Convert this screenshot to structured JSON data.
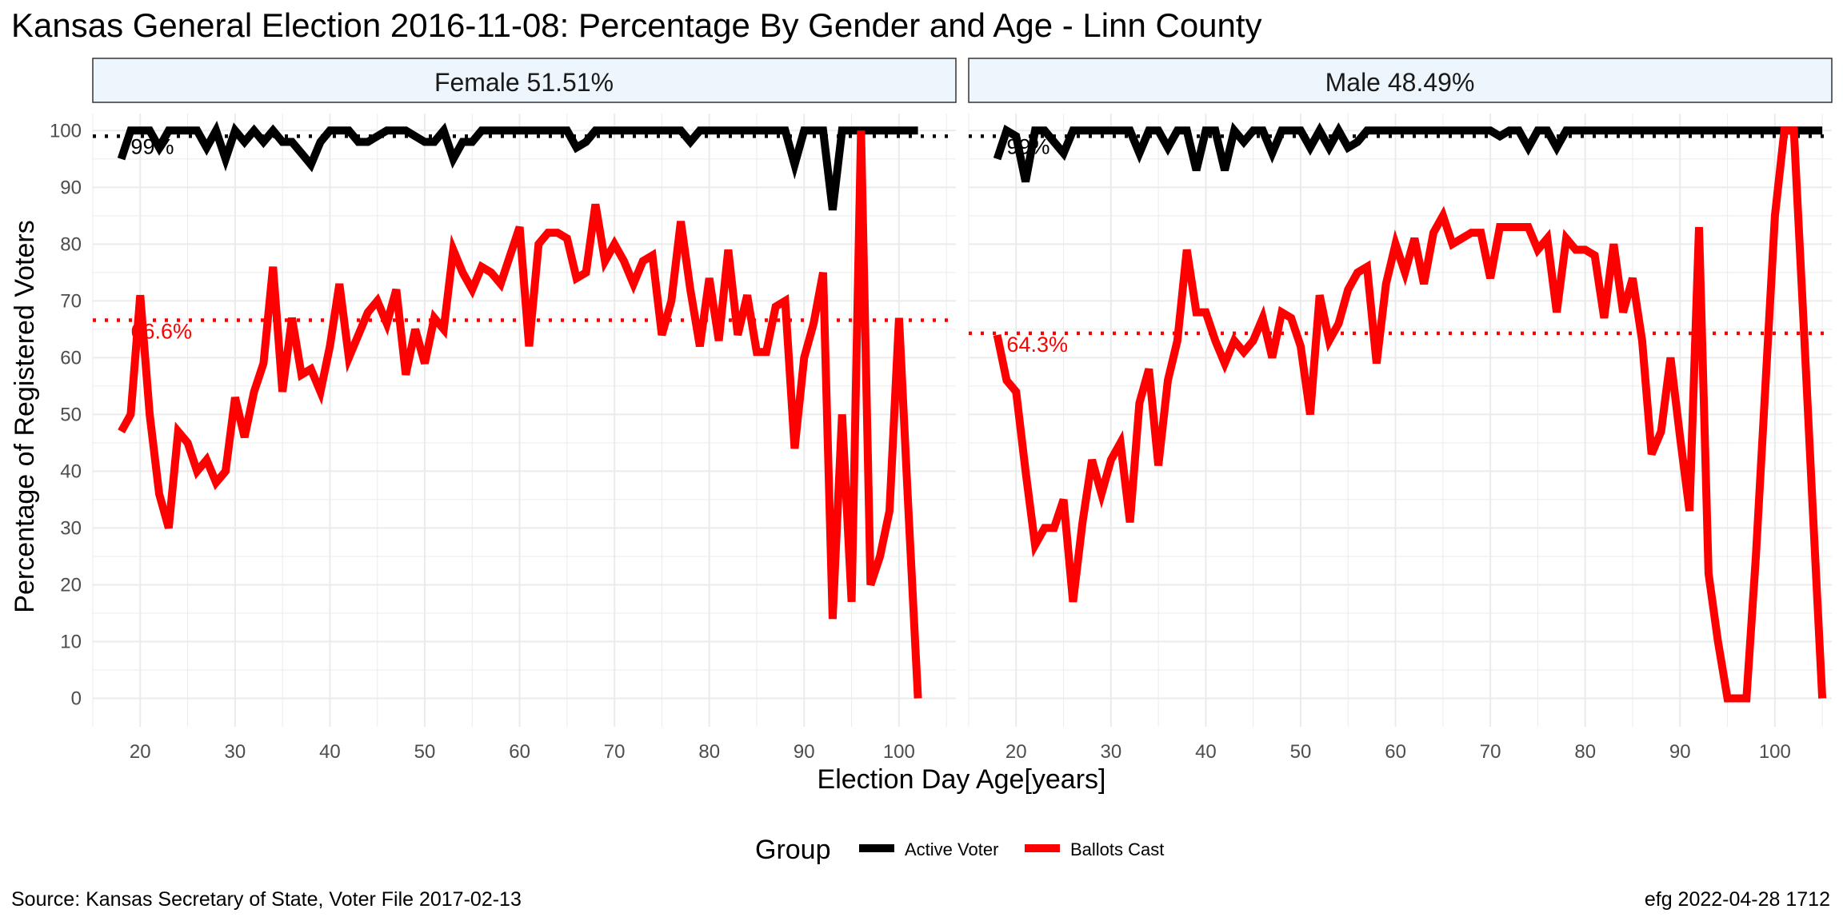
{
  "title": "Kansas General Election 2016-11-08:  Percentage By Gender and Age - Linn County",
  "source": "Source:  Kansas Secretary of State, Voter File  2017-02-13",
  "stamp": "efg 2022-04-28 1712",
  "colors": {
    "active": "#000000",
    "ballots": "#ff0000",
    "strip_fill": "#eef6fd",
    "grid": "#ebebeb"
  },
  "chart_data": {
    "type": "line",
    "xlabel": "Election Day Age[years]",
    "ylabel": "Percentage of Registered Voters",
    "xlim": [
      15,
      106
    ],
    "ylim": [
      -5,
      103
    ],
    "x_ticks": [
      20,
      30,
      40,
      50,
      60,
      70,
      80,
      90,
      100
    ],
    "y_ticks": [
      0,
      10,
      20,
      30,
      40,
      50,
      60,
      70,
      80,
      90,
      100
    ],
    "grid": true,
    "legend": {
      "title": "Group",
      "position": "bottom",
      "entries": [
        "Active Voter",
        "Ballots Cast"
      ]
    },
    "panels": [
      {
        "strip": "Female 51.51%",
        "active_ref": 99,
        "active_ref_label": "99%",
        "ballots_ref": 66.6,
        "ballots_ref_label": "66.6%",
        "series": [
          {
            "name": "Active Voter",
            "x": [
              18,
              19,
              20,
              21,
              22,
              23,
              24,
              25,
              26,
              27,
              28,
              29,
              30,
              31,
              32,
              33,
              34,
              35,
              36,
              37,
              38,
              39,
              40,
              41,
              42,
              43,
              44,
              45,
              46,
              47,
              48,
              49,
              50,
              51,
              52,
              53,
              54,
              55,
              56,
              57,
              58,
              59,
              60,
              61,
              62,
              63,
              64,
              65,
              66,
              67,
              68,
              69,
              70,
              71,
              72,
              73,
              74,
              75,
              76,
              77,
              78,
              79,
              80,
              81,
              82,
              83,
              84,
              85,
              86,
              87,
              88,
              89,
              90,
              91,
              92,
              93,
              94,
              95,
              96,
              97,
              98,
              99,
              100,
              101,
              102
            ],
            "y": [
              95,
              100,
              100,
              100,
              97,
              100,
              100,
              100,
              100,
              97,
              100,
              95,
              100,
              98,
              100,
              98,
              100,
              98,
              98,
              96,
              94,
              98,
              100,
              100,
              100,
              98,
              98,
              99,
              100,
              100,
              100,
              99,
              98,
              98,
              100,
              95,
              98,
              98,
              100,
              100,
              100,
              100,
              100,
              100,
              100,
              100,
              100,
              100,
              97,
              98,
              100,
              100,
              100,
              100,
              100,
              100,
              100,
              100,
              100,
              100,
              98,
              100,
              100,
              100,
              100,
              100,
              100,
              100,
              100,
              100,
              100,
              94,
              100,
              100,
              100,
              86,
              100,
              100,
              100,
              100,
              100,
              100,
              100,
              100,
              100
            ]
          },
          {
            "name": "Ballots Cast",
            "x": [
              18,
              19,
              20,
              21,
              22,
              23,
              24,
              25,
              26,
              27,
              28,
              29,
              30,
              31,
              32,
              33,
              34,
              35,
              36,
              37,
              38,
              39,
              40,
              41,
              42,
              43,
              44,
              45,
              46,
              47,
              48,
              49,
              50,
              51,
              52,
              53,
              54,
              55,
              56,
              57,
              58,
              59,
              60,
              61,
              62,
              63,
              64,
              65,
              66,
              67,
              68,
              69,
              70,
              71,
              72,
              73,
              74,
              75,
              76,
              77,
              78,
              79,
              80,
              81,
              82,
              83,
              84,
              85,
              86,
              87,
              88,
              89,
              90,
              91,
              92,
              93,
              94,
              95,
              96,
              97,
              98,
              99,
              100,
              101,
              102
            ],
            "y": [
              47,
              50,
              71,
              50,
              36,
              30,
              47,
              45,
              40,
              42,
              38,
              40,
              53,
              46,
              54,
              59,
              76,
              54,
              67,
              57,
              58,
              54,
              62,
              73,
              60,
              64,
              68,
              70,
              66,
              72,
              57,
              65,
              59,
              67,
              65,
              79,
              75,
              72,
              76,
              75,
              73,
              78,
              83,
              62,
              80,
              82,
              82,
              81,
              74,
              75,
              87,
              77,
              80,
              77,
              73,
              77,
              78,
              64,
              70,
              84,
              72,
              62,
              74,
              63,
              79,
              64,
              71,
              61,
              61,
              69,
              70,
              44,
              60,
              66,
              75,
              14,
              50,
              17,
              100,
              20,
              25,
              33,
              67,
              33,
              0
            ]
          }
        ]
      },
      {
        "strip": "Male 48.49%",
        "active_ref": 99,
        "active_ref_label": "99%",
        "ballots_ref": 64.3,
        "ballots_ref_label": "64.3%",
        "series": [
          {
            "name": "Active Voter",
            "x": [
              18,
              19,
              20,
              21,
              22,
              23,
              24,
              25,
              26,
              27,
              28,
              29,
              30,
              31,
              32,
              33,
              34,
              35,
              36,
              37,
              38,
              39,
              40,
              41,
              42,
              43,
              44,
              45,
              46,
              47,
              48,
              49,
              50,
              51,
              52,
              53,
              54,
              55,
              56,
              57,
              58,
              59,
              60,
              61,
              62,
              63,
              64,
              65,
              66,
              67,
              68,
              69,
              70,
              71,
              72,
              73,
              74,
              75,
              76,
              77,
              78,
              79,
              80,
              81,
              82,
              83,
              84,
              85,
              86,
              87,
              88,
              89,
              90,
              91,
              92,
              93,
              94,
              95,
              96,
              97,
              98,
              99,
              100,
              101,
              102,
              103,
              104,
              105
            ],
            "y": [
              95,
              100,
              99,
              91,
              100,
              100,
              98,
              96,
              100,
              100,
              100,
              100,
              100,
              100,
              100,
              96,
              100,
              100,
              97,
              100,
              100,
              93,
              100,
              100,
              93,
              100,
              98,
              100,
              100,
              96,
              100,
              100,
              100,
              97,
              100,
              97,
              100,
              97,
              98,
              100,
              100,
              100,
              100,
              100,
              100,
              100,
              100,
              100,
              100,
              100,
              100,
              100,
              100,
              99,
              100,
              100,
              97,
              100,
              100,
              97,
              100,
              100,
              100,
              100,
              100,
              100,
              100,
              100,
              100,
              100,
              100,
              100,
              100,
              100,
              100,
              100,
              100,
              100,
              100,
              100,
              100,
              100,
              100,
              100,
              100,
              100,
              100,
              100
            ]
          },
          {
            "name": "Ballots Cast",
            "x": [
              18,
              19,
              20,
              21,
              22,
              23,
              24,
              25,
              26,
              27,
              28,
              29,
              30,
              31,
              32,
              33,
              34,
              35,
              36,
              37,
              38,
              39,
              40,
              41,
              42,
              43,
              44,
              45,
              46,
              47,
              48,
              49,
              50,
              51,
              52,
              53,
              54,
              55,
              56,
              57,
              58,
              59,
              60,
              61,
              62,
              63,
              64,
              65,
              66,
              67,
              68,
              69,
              70,
              71,
              72,
              73,
              74,
              75,
              76,
              77,
              78,
              79,
              80,
              81,
              82,
              83,
              84,
              85,
              86,
              87,
              88,
              89,
              90,
              91,
              92,
              93,
              94,
              95,
              96,
              97,
              98,
              99,
              100,
              101,
              102,
              103,
              104,
              105
            ],
            "y": [
              64,
              56,
              54,
              40,
              27,
              30,
              30,
              35,
              17,
              31,
              42,
              36,
              42,
              45,
              31,
              52,
              58,
              41,
              56,
              63,
              79,
              68,
              68,
              63,
              59,
              63,
              61,
              63,
              67,
              60,
              68,
              67,
              62,
              50,
              71,
              63,
              66,
              72,
              75,
              76,
              59,
              73,
              80,
              75,
              81,
              73,
              82,
              85,
              80,
              81,
              82,
              82,
              74,
              83,
              83,
              83,
              83,
              79,
              81,
              68,
              81,
              79,
              79,
              78,
              67,
              80,
              68,
              74,
              63,
              43,
              47,
              60,
              46,
              33,
              83,
              22,
              10,
              0,
              0,
              0,
              25,
              55,
              85,
              100,
              100,
              67,
              33,
              0
            ]
          }
        ]
      }
    ]
  }
}
